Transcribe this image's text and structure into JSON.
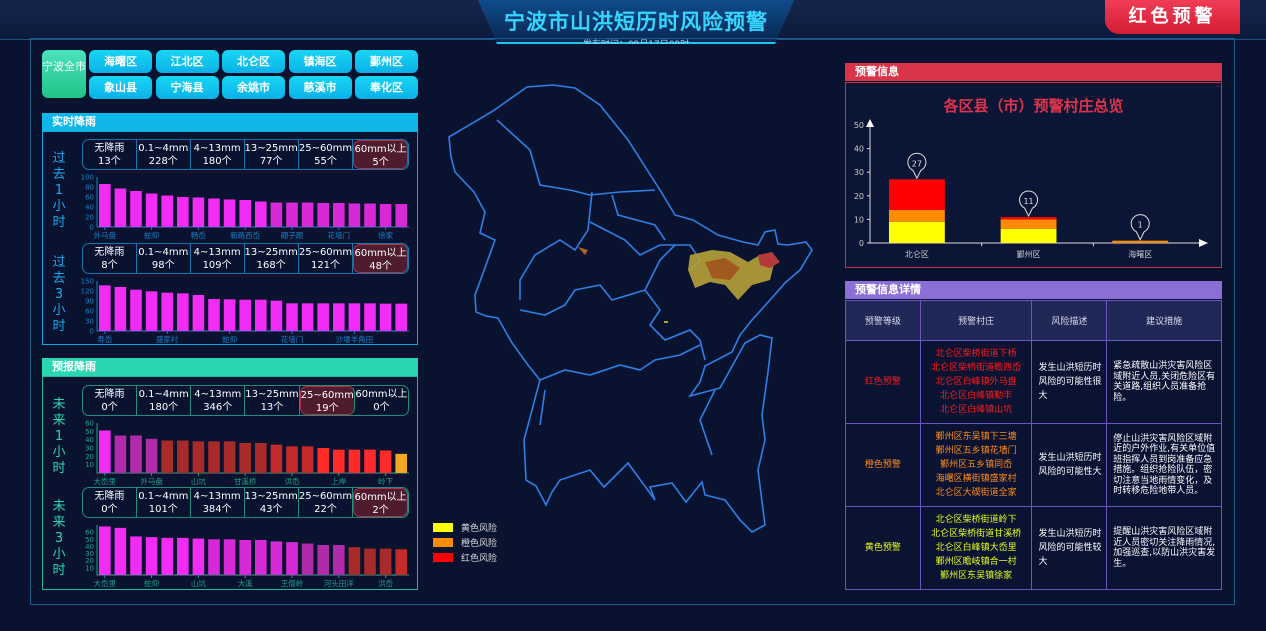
{
  "header": {
    "title": "宁波市山洪短历时风险预警",
    "publish_time": "发布时间：09月17日09时",
    "alert_badge": "红色预警"
  },
  "districts": {
    "all": "宁波全市",
    "items": [
      "海曙区",
      "江北区",
      "北仑区",
      "镇海区",
      "鄞州区",
      "象山县",
      "宁海县",
      "余姚市",
      "慈溪市",
      "奉化区"
    ]
  },
  "realtime": {
    "title": "实时降雨",
    "accent": "#0fb6e8",
    "blocks": [
      {
        "side": "过去1小时",
        "stats": [
          {
            "label": "无降雨",
            "count": "13个"
          },
          {
            "label": "0.1~4mm",
            "count": "228个"
          },
          {
            "label": "4~13mm",
            "count": "180个"
          },
          {
            "label": "13~25mm",
            "count": "77个"
          },
          {
            "label": "25~60mm",
            "count": "55个"
          },
          {
            "label": "60mm以上",
            "count": "5个"
          }
        ],
        "highlight": 5,
        "chart": {
          "type": "bar",
          "ylim": [
            0,
            100
          ],
          "yticks": [
            0,
            20,
            40,
            60,
            80,
            100
          ],
          "categories": [
            "外马盘",
            "",
            "",
            "蛇仰",
            "",
            "",
            "畅岙",
            "",
            "",
            "新路西岙",
            "",
            "",
            "硼子跟",
            "",
            "",
            "花墙门",
            "",
            "",
            "徐家",
            ""
          ],
          "values": [
            86,
            77,
            72,
            67,
            63,
            60,
            59,
            57,
            55,
            54,
            51,
            49,
            49,
            49,
            48,
            48,
            47,
            47,
            46,
            46
          ],
          "colors": [
            "#f22cf5",
            "#f22cf5",
            "#f22cf5",
            "#f22cf5",
            "#f22cf5",
            "#f22cf5",
            "#f22cf5",
            "#f22cf5",
            "#f22cf5",
            "#f22cf5",
            "#f22cf5",
            "#d62ad8",
            "#d62ad8",
            "#d62ad8",
            "#d62ad8",
            "#d62ad8",
            "#d62ad8",
            "#d62ad8",
            "#d62ad8",
            "#d62ad8"
          ]
        }
      },
      {
        "side": "过去3小时",
        "stats": [
          {
            "label": "无降雨",
            "count": "8个"
          },
          {
            "label": "0.1~4mm",
            "count": "98个"
          },
          {
            "label": "4~13mm",
            "count": "109个"
          },
          {
            "label": "13~25mm",
            "count": "168个"
          },
          {
            "label": "25~60mm",
            "count": "121个"
          },
          {
            "label": "60mm以上",
            "count": "48个"
          }
        ],
        "highlight": 5,
        "chart": {
          "type": "bar",
          "ylim": [
            0,
            150
          ],
          "yticks": [
            0,
            30,
            60,
            90,
            120,
            150
          ],
          "categories": [
            "寿岙",
            "",
            "",
            "",
            "盛家村",
            "",
            "",
            "",
            "蛇仰",
            "",
            "",
            "",
            "花墙门",
            "",
            "",
            "",
            "沙堰羊角田",
            "",
            "",
            ""
          ],
          "values": [
            137,
            132,
            124,
            119,
            115,
            113,
            108,
            96,
            95,
            94,
            94,
            91,
            83,
            83,
            83,
            83,
            83,
            83,
            82,
            82
          ],
          "colors": [
            "#f22cf5",
            "#f22cf5",
            "#f22cf5",
            "#f22cf5",
            "#f22cf5",
            "#f22cf5",
            "#f22cf5",
            "#f22cf5",
            "#f22cf5",
            "#f22cf5",
            "#f22cf5",
            "#f22cf5",
            "#f22cf5",
            "#f22cf5",
            "#f22cf5",
            "#f22cf5",
            "#f22cf5",
            "#f22cf5",
            "#f22cf5",
            "#f22cf5"
          ]
        }
      }
    ]
  },
  "forecast": {
    "title": "预报降雨",
    "accent": "#2ad6b0",
    "blocks": [
      {
        "side": "未来1小时",
        "stats": [
          {
            "label": "无降雨",
            "count": "0个"
          },
          {
            "label": "0.1~4mm",
            "count": "180个"
          },
          {
            "label": "4~13mm",
            "count": "346个"
          },
          {
            "label": "13~25mm",
            "count": "13个"
          },
          {
            "label": "25~60mm",
            "count": "19个"
          },
          {
            "label": "60mm以上",
            "count": "0个"
          }
        ],
        "highlight": 4,
        "chart": {
          "type": "bar",
          "ylim": [
            0,
            60
          ],
          "yticks": [
            10,
            20,
            30,
            40,
            50,
            60
          ],
          "categories": [
            "大岙里",
            "",
            "",
            "外马盘",
            "",
            "",
            "山坑",
            "",
            "",
            "甘溪桥",
            "",
            "",
            "洪岙",
            "",
            "",
            "上岸",
            "",
            "",
            "岭下",
            ""
          ],
          "values": [
            51,
            45,
            45,
            41,
            39,
            39,
            38,
            38,
            38,
            36,
            36,
            34,
            32,
            32,
            30,
            28,
            28,
            28,
            27,
            23
          ],
          "colors": [
            "#f22cf5",
            "#b02aaa",
            "#b02aaa",
            "#b02aaa",
            "#a82a2a",
            "#a82a2a",
            "#a82a2a",
            "#a82a2a",
            "#a82a2a",
            "#a82a2a",
            "#a82a2a",
            "#c42a2a",
            "#c42a2a",
            "#c42a2a",
            "#ff2a2a",
            "#ff2a2a",
            "#ff2a2a",
            "#ff2a2a",
            "#ff2a2a",
            "#f5a623"
          ]
        }
      },
      {
        "side": "未来3小时",
        "stats": [
          {
            "label": "无降雨",
            "count": "0个"
          },
          {
            "label": "0.1~4mm",
            "count": "101个"
          },
          {
            "label": "4~13mm",
            "count": "384个"
          },
          {
            "label": "13~25mm",
            "count": "43个"
          },
          {
            "label": "25~60mm",
            "count": "22个"
          },
          {
            "label": "60mm以上",
            "count": "2个"
          }
        ],
        "highlight": 5,
        "chart": {
          "type": "bar",
          "ylim": [
            0,
            70
          ],
          "yticks": [
            10,
            20,
            30,
            40,
            50,
            60
          ],
          "categories": [
            "大岙里",
            "",
            "",
            "蛇仰",
            "",
            "",
            "山坑",
            "",
            "",
            "大溪",
            "",
            "",
            "王僧岭",
            "",
            "",
            "河头田洋",
            "",
            "",
            "洪岙",
            ""
          ],
          "values": [
            68,
            66,
            54,
            53,
            52,
            52,
            51,
            50,
            50,
            49,
            49,
            47,
            46,
            44,
            42,
            42,
            39,
            37,
            37,
            36
          ],
          "colors": [
            "#f22cf5",
            "#f22cf5",
            "#f22cf5",
            "#f22cf5",
            "#f22cf5",
            "#f22cf5",
            "#f22cf5",
            "#d62ad8",
            "#d62ad8",
            "#d62ad8",
            "#d62ad8",
            "#d62ad8",
            "#d62ad8",
            "#b02aaa",
            "#b02aaa",
            "#b02aaa",
            "#a82a2a",
            "#a82a2a",
            "#a82a2a",
            "#c42a2a"
          ]
        }
      }
    ]
  },
  "map": {
    "legend": [
      {
        "label": "黄色风险",
        "color": "#ffff00"
      },
      {
        "label": "橙色风险",
        "color": "#ff8c00"
      },
      {
        "label": "红色风险",
        "color": "#ff0000"
      }
    ]
  },
  "warning": {
    "title": "预警信息",
    "chart_data": {
      "type": "bar",
      "stacked": true,
      "title": "各区县（市）预警村庄总览",
      "ylim": [
        0,
        50
      ],
      "yticks": [
        0,
        10,
        20,
        30,
        40,
        50
      ],
      "categories": [
        "北仑区",
        "鄞州区",
        "海曙区"
      ],
      "series": [
        {
          "color": "#ffff00",
          "values": [
            9,
            6,
            0
          ]
        },
        {
          "color": "#ff8c00",
          "values": [
            5,
            4,
            1
          ]
        },
        {
          "color": "#ff0000",
          "values": [
            13,
            1,
            0
          ]
        }
      ],
      "totals": [
        "27",
        "11",
        "1"
      ]
    }
  },
  "details": {
    "title": "预警信息详情",
    "headers": [
      "预警等级",
      "预警村庄",
      "风险描述",
      "建议措施"
    ],
    "rows": [
      {
        "level": "红色预警",
        "color": "#ff1a1a",
        "villages": [
          "北仑区柴桥街道下杨",
          "北仑区柴桥街道瞻西岙",
          "北仑区白峰镇外马盘",
          "北仑区白峰镇勤丰",
          "北仑区白峰镇山坑"
        ],
        "risk": "发生山洪短历时风险的可能性很大",
        "advice": "紧急疏散山洪灾害风险区域附近人员,关闭危险区有关道路,组织人员准备抢险。"
      },
      {
        "level": "橙色预警",
        "color": "#ff8c1a",
        "villages": [
          "鄞州区东吴镇下三塘",
          "鄞州区五乡镇花墙门",
          "鄞州区五乡镇同岙",
          "海曙区横街镇盛家村",
          "北仑区大碶街道全家"
        ],
        "risk": "发生山洪短历时风险的可能性大",
        "advice": "停止山洪灾害风险区域附近的户外作业,有关单位值班指挥人员到岗准备应急措施。组织抢险队伍，密切注意当地雨情变化，及时转移危险地带人员。"
      },
      {
        "level": "黄色预警",
        "color": "#e6ff1a",
        "villages": [
          "北仑区柴桥街道岭下",
          "北仑区柴桥街道甘溪桥",
          "北仑区白峰镇大岙里",
          "鄞州区瞻岐镇合一村",
          "鄞州区东吴镇徐家"
        ],
        "risk": "发生山洪短历时风险的可能性较大",
        "advice": "提醒山洪灾害风险区域附近人员密切关注降雨情况,加强巡查,以防山洪灾害发生。"
      }
    ]
  }
}
